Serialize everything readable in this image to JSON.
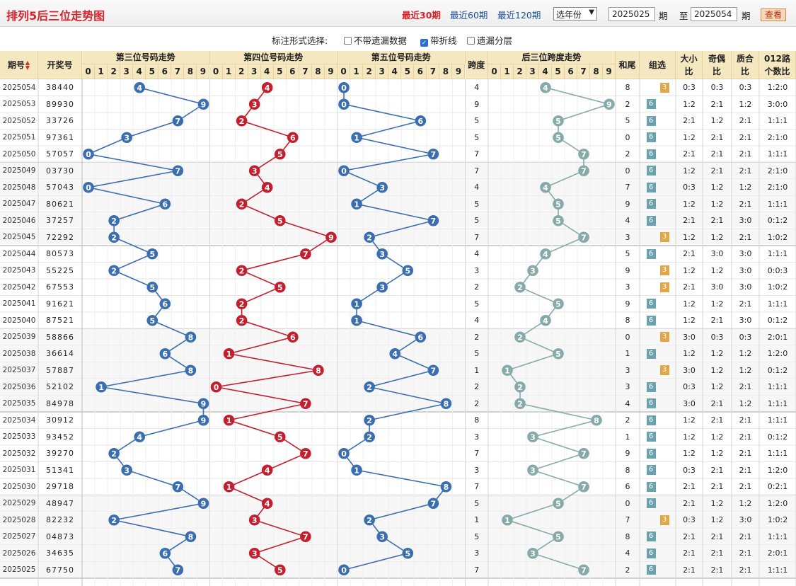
{
  "header": {
    "title": "排列5后三位走势图",
    "recent30": "最近30期",
    "recent60": "最近60期",
    "recent120": "最近120期",
    "year_select": "选年份",
    "period_start": "2025025",
    "label_qi": "期",
    "label_zhi": "至",
    "period_end": "2025054",
    "view_button": "查看"
  },
  "options": {
    "label": "标注形式选择:",
    "opt_missing": "不带遗漏数据",
    "opt_line": "带折线",
    "opt_layer": "遗漏分层",
    "opt_line_checked": true
  },
  "table": {
    "headers": {
      "issue": "期号",
      "prize": "开奖号",
      "pos3": "第三位号码走势",
      "pos4": "第四位号码走势",
      "pos5": "第五位号码走势",
      "span": "跨度",
      "span_trend": "后三位跨度走势",
      "sum_tail": "和尾",
      "group": "组选",
      "big_small": "大小比",
      "odd_even": "奇偶比",
      "prime_comp": "质合比",
      "route012": "012路个数比"
    },
    "digits": [
      "0",
      "1",
      "2",
      "3",
      "4",
      "5",
      "6",
      "7",
      "8",
      "9"
    ],
    "colors": {
      "pos3": "#3a6eae",
      "pos4": "#c21f2f",
      "pos5": "#3a6eae",
      "span": "#86aaa8",
      "group6": "#6aa3ae",
      "group3": "#e2a548",
      "header_bg": "#f5e7c0"
    },
    "rows": [
      {
        "issue": "2025054",
        "prize": "38440",
        "p3": 4,
        "p4": 4,
        "p5": 0,
        "span": 4,
        "tail": 8,
        "g": "3",
        "bs": "0:3",
        "oe": "0:3",
        "pc": "0:3",
        "r": "1:2:0"
      },
      {
        "issue": "2025053",
        "prize": "89930",
        "p3": 9,
        "p4": 3,
        "p5": 0,
        "span": 9,
        "tail": 2,
        "g": "6",
        "bs": "1:2",
        "oe": "2:1",
        "pc": "1:2",
        "r": "3:0:0"
      },
      {
        "issue": "2025052",
        "prize": "33726",
        "p3": 7,
        "p4": 2,
        "p5": 6,
        "span": 5,
        "tail": 5,
        "g": "6",
        "bs": "2:1",
        "oe": "1:2",
        "pc": "2:1",
        "r": "1:1:1"
      },
      {
        "issue": "2025051",
        "prize": "97361",
        "p3": 3,
        "p4": 6,
        "p5": 1,
        "span": 5,
        "tail": 0,
        "g": "6",
        "bs": "1:2",
        "oe": "2:1",
        "pc": "2:1",
        "r": "2:1:0"
      },
      {
        "issue": "2025050",
        "prize": "57057",
        "p3": 0,
        "p4": 5,
        "p5": 7,
        "span": 7,
        "tail": 2,
        "g": "6",
        "bs": "2:1",
        "oe": "2:1",
        "pc": "2:1",
        "r": "1:1:1"
      },
      {
        "issue": "2025049",
        "prize": "03730",
        "p3": 7,
        "p4": 3,
        "p5": 0,
        "span": 7,
        "tail": 0,
        "g": "6",
        "bs": "1:2",
        "oe": "2:1",
        "pc": "2:1",
        "r": "2:1:0"
      },
      {
        "issue": "2025048",
        "prize": "57043",
        "p3": 0,
        "p4": 4,
        "p5": 3,
        "span": 4,
        "tail": 7,
        "g": "6",
        "bs": "0:3",
        "oe": "1:2",
        "pc": "1:2",
        "r": "2:1:0"
      },
      {
        "issue": "2025047",
        "prize": "80621",
        "p3": 6,
        "p4": 2,
        "p5": 1,
        "span": 5,
        "tail": 9,
        "g": "6",
        "bs": "1:2",
        "oe": "1:2",
        "pc": "2:1",
        "r": "1:1:1"
      },
      {
        "issue": "2025046",
        "prize": "37257",
        "p3": 2,
        "p4": 5,
        "p5": 7,
        "span": 5,
        "tail": 4,
        "g": "6",
        "bs": "2:1",
        "oe": "2:1",
        "pc": "3:0",
        "r": "0:1:2"
      },
      {
        "issue": "2025045",
        "prize": "72292",
        "p3": 2,
        "p4": 9,
        "p5": 2,
        "span": 7,
        "tail": 3,
        "g": "3",
        "bs": "1:2",
        "oe": "1:2",
        "pc": "2:1",
        "r": "1:0:2"
      },
      {
        "issue": "2025044",
        "prize": "80573",
        "p3": 5,
        "p4": 7,
        "p5": 3,
        "span": 4,
        "tail": 5,
        "g": "6",
        "bs": "2:1",
        "oe": "3:0",
        "pc": "3:0",
        "r": "1:1:1"
      },
      {
        "issue": "2025043",
        "prize": "55225",
        "p3": 2,
        "p4": 2,
        "p5": 5,
        "span": 3,
        "tail": 9,
        "g": "3",
        "bs": "1:2",
        "oe": "1:2",
        "pc": "3:0",
        "r": "0:0:3"
      },
      {
        "issue": "2025042",
        "prize": "67553",
        "p3": 5,
        "p4": 5,
        "p5": 3,
        "span": 2,
        "tail": 3,
        "g": "3",
        "bs": "2:1",
        "oe": "3:0",
        "pc": "3:0",
        "r": "1:0:2"
      },
      {
        "issue": "2025041",
        "prize": "91621",
        "p3": 6,
        "p4": 2,
        "p5": 1,
        "span": 5,
        "tail": 9,
        "g": "6",
        "bs": "1:2",
        "oe": "1:2",
        "pc": "2:1",
        "r": "1:1:1"
      },
      {
        "issue": "2025040",
        "prize": "87521",
        "p3": 5,
        "p4": 2,
        "p5": 1,
        "span": 4,
        "tail": 8,
        "g": "6",
        "bs": "1:2",
        "oe": "2:1",
        "pc": "3:0",
        "r": "0:1:2"
      },
      {
        "issue": "2025039",
        "prize": "58866",
        "p3": 8,
        "p4": 6,
        "p5": 6,
        "span": 2,
        "tail": 0,
        "g": "3",
        "bs": "3:0",
        "oe": "0:3",
        "pc": "0:3",
        "r": "2:0:1"
      },
      {
        "issue": "2025038",
        "prize": "36614",
        "p3": 6,
        "p4": 1,
        "p5": 4,
        "span": 5,
        "tail": 1,
        "g": "6",
        "bs": "1:2",
        "oe": "1:2",
        "pc": "1:2",
        "r": "1:2:0"
      },
      {
        "issue": "2025037",
        "prize": "57887",
        "p3": 8,
        "p4": 8,
        "p5": 7,
        "span": 1,
        "tail": 3,
        "g": "3",
        "bs": "3:0",
        "oe": "1:2",
        "pc": "1:2",
        "r": "0:1:2"
      },
      {
        "issue": "2025036",
        "prize": "52102",
        "p3": 1,
        "p4": 0,
        "p5": 2,
        "span": 2,
        "tail": 3,
        "g": "6",
        "bs": "0:3",
        "oe": "1:2",
        "pc": "2:1",
        "r": "1:1:1"
      },
      {
        "issue": "2025035",
        "prize": "84978",
        "p3": 9,
        "p4": 7,
        "p5": 8,
        "span": 2,
        "tail": 4,
        "g": "6",
        "bs": "3:0",
        "oe": "2:1",
        "pc": "1:2",
        "r": "1:1:1"
      },
      {
        "issue": "2025034",
        "prize": "30912",
        "p3": 9,
        "p4": 1,
        "p5": 2,
        "span": 8,
        "tail": 2,
        "g": "6",
        "bs": "1:2",
        "oe": "2:1",
        "pc": "2:1",
        "r": "1:1:1"
      },
      {
        "issue": "2025033",
        "prize": "93452",
        "p3": 4,
        "p4": 5,
        "p5": 2,
        "span": 3,
        "tail": 1,
        "g": "6",
        "bs": "1:2",
        "oe": "1:2",
        "pc": "2:1",
        "r": "0:1:2"
      },
      {
        "issue": "2025032",
        "prize": "39270",
        "p3": 2,
        "p4": 7,
        "p5": 0,
        "span": 7,
        "tail": 9,
        "g": "6",
        "bs": "1:2",
        "oe": "1:2",
        "pc": "2:1",
        "r": "1:1:1"
      },
      {
        "issue": "2025031",
        "prize": "51341",
        "p3": 3,
        "p4": 4,
        "p5": 1,
        "span": 3,
        "tail": 8,
        "g": "6",
        "bs": "0:3",
        "oe": "2:1",
        "pc": "2:1",
        "r": "1:2:0"
      },
      {
        "issue": "2025030",
        "prize": "29718",
        "p3": 7,
        "p4": 1,
        "p5": 8,
        "span": 7,
        "tail": 6,
        "g": "6",
        "bs": "2:1",
        "oe": "2:1",
        "pc": "2:1",
        "r": "0:2:1"
      },
      {
        "issue": "2025029",
        "prize": "48947",
        "p3": 9,
        "p4": 4,
        "p5": 7,
        "span": 5,
        "tail": 0,
        "g": "6",
        "bs": "2:1",
        "oe": "1:2",
        "pc": "1:2",
        "r": "1:2:0"
      },
      {
        "issue": "2025028",
        "prize": "82232",
        "p3": 2,
        "p4": 3,
        "p5": 2,
        "span": 1,
        "tail": 7,
        "g": "3",
        "bs": "0:3",
        "oe": "1:2",
        "pc": "3:0",
        "r": "1:0:2"
      },
      {
        "issue": "2025027",
        "prize": "04873",
        "p3": 8,
        "p4": 7,
        "p5": 3,
        "span": 5,
        "tail": 8,
        "g": "6",
        "bs": "2:1",
        "oe": "2:1",
        "pc": "2:1",
        "r": "1:1:1"
      },
      {
        "issue": "2025026",
        "prize": "34635",
        "p3": 6,
        "p4": 3,
        "p5": 5,
        "span": 3,
        "tail": 4,
        "g": "6",
        "bs": "2:1",
        "oe": "2:1",
        "pc": "2:1",
        "r": "2:0:1"
      },
      {
        "issue": "2025025",
        "prize": "67750",
        "p3": 7,
        "p4": 5,
        "p5": 0,
        "span": 7,
        "tail": 2,
        "g": "6",
        "bs": "2:1",
        "oe": "2:1",
        "pc": "2:1",
        "r": "1:1:1"
      }
    ]
  }
}
